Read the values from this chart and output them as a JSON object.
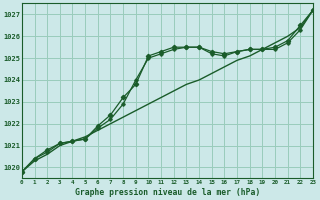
{
  "title": "Graphe pression niveau de la mer (hPa)",
  "bg_color": "#cce8e8",
  "grid_color": "#99ccbb",
  "line_color": "#1a5c2a",
  "xlim": [
    0,
    23
  ],
  "ylim": [
    1019.5,
    1027.5
  ],
  "yticks": [
    1020,
    1021,
    1022,
    1023,
    1024,
    1025,
    1026,
    1027
  ],
  "xticks": [
    0,
    1,
    2,
    3,
    4,
    5,
    6,
    7,
    8,
    9,
    10,
    11,
    12,
    13,
    14,
    15,
    16,
    17,
    18,
    19,
    20,
    21,
    22,
    23
  ],
  "series1_x": [
    0,
    1,
    2,
    3,
    4,
    5,
    6,
    7,
    8,
    9,
    10,
    11,
    12,
    13,
    14,
    15,
    16,
    17,
    18,
    19,
    20,
    21,
    22,
    23
  ],
  "series1_y": [
    1019.8,
    1020.3,
    1020.6,
    1021.0,
    1021.2,
    1021.4,
    1021.7,
    1022.0,
    1022.3,
    1022.6,
    1022.9,
    1023.2,
    1023.5,
    1023.8,
    1024.0,
    1024.3,
    1024.6,
    1024.9,
    1025.1,
    1025.4,
    1025.7,
    1026.0,
    1026.4,
    1027.2
  ],
  "series2_x": [
    0,
    1,
    2,
    3,
    4,
    5,
    6,
    7,
    8,
    9,
    10,
    11,
    12,
    13,
    14,
    15,
    16,
    17,
    18,
    19,
    20,
    21,
    22,
    23
  ],
  "series2_y": [
    1019.8,
    1020.4,
    1020.8,
    1021.1,
    1021.2,
    1021.3,
    1021.9,
    1022.4,
    1023.2,
    1023.8,
    1025.1,
    1025.3,
    1025.5,
    1025.5,
    1025.5,
    1025.3,
    1025.2,
    1025.3,
    1025.4,
    1025.4,
    1025.5,
    1025.8,
    1026.5,
    1027.2
  ],
  "series3_x": [
    0,
    1,
    2,
    3,
    4,
    5,
    6,
    7,
    8,
    9,
    10,
    11,
    12,
    13,
    14,
    15,
    16,
    17,
    18,
    19,
    20,
    21,
    22,
    23
  ],
  "series3_y": [
    1019.8,
    1020.4,
    1020.7,
    1021.1,
    1021.2,
    1021.3,
    1021.8,
    1022.2,
    1022.9,
    1024.0,
    1025.0,
    1025.2,
    1025.4,
    1025.5,
    1025.5,
    1025.2,
    1025.1,
    1025.3,
    1025.4,
    1025.4,
    1025.4,
    1025.7,
    1026.3,
    1027.2
  ]
}
